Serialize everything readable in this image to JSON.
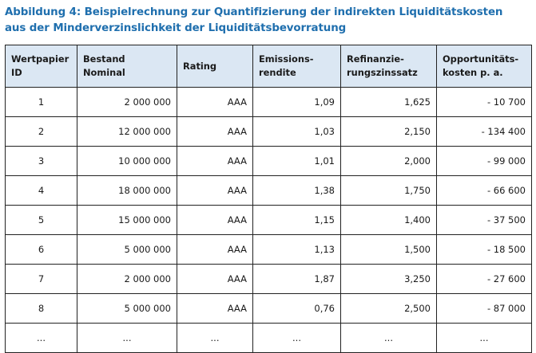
{
  "figure": {
    "title_line1": "Abbildung 4: Beispielrechnung zur Quantifizierung der indirekten Liquiditätskosten",
    "title_line2": "aus der Minderverzinslichkeit der Liquiditätsbevorratung"
  },
  "table": {
    "headers": [
      [
        "Wertpapier",
        "ID"
      ],
      [
        "Bestand",
        "Nominal"
      ],
      [
        "Rating"
      ],
      [
        "Emissions-",
        "rendite"
      ],
      [
        "Refinanzie-",
        "rungszinssatz"
      ],
      [
        "Opportunitäts-",
        "kosten p. a."
      ]
    ],
    "rows": [
      [
        "1",
        "2 000 000",
        "AAA",
        "1,09",
        "1,625",
        "- 10 700"
      ],
      [
        "2",
        "12 000 000",
        "AAA",
        "1,03",
        "2,150",
        "- 134 400"
      ],
      [
        "3",
        "10 000 000",
        "AAA",
        "1,01",
        "2,000",
        "- 99 000"
      ],
      [
        "4",
        "18 000 000",
        "AAA",
        "1,38",
        "1,750",
        "- 66 600"
      ],
      [
        "5",
        "15 000 000",
        "AAA",
        "1,15",
        "1,400",
        "- 37 500"
      ],
      [
        "6",
        "5 000 000",
        "AAA",
        "1,13",
        "1,500",
        "- 18 500"
      ],
      [
        "7",
        "2 000 000",
        "AAA",
        "1,87",
        "3,250",
        "- 27 600"
      ],
      [
        "8",
        "5 000 000",
        "AAA",
        "0,76",
        "2,500",
        "- 87 000"
      ],
      [
        "...",
        "...",
        "...",
        "...",
        "...",
        "..."
      ]
    ]
  },
  "colors": {
    "title": "#1f6fae",
    "header_background": "#dbe7f3",
    "border": "#222222"
  }
}
